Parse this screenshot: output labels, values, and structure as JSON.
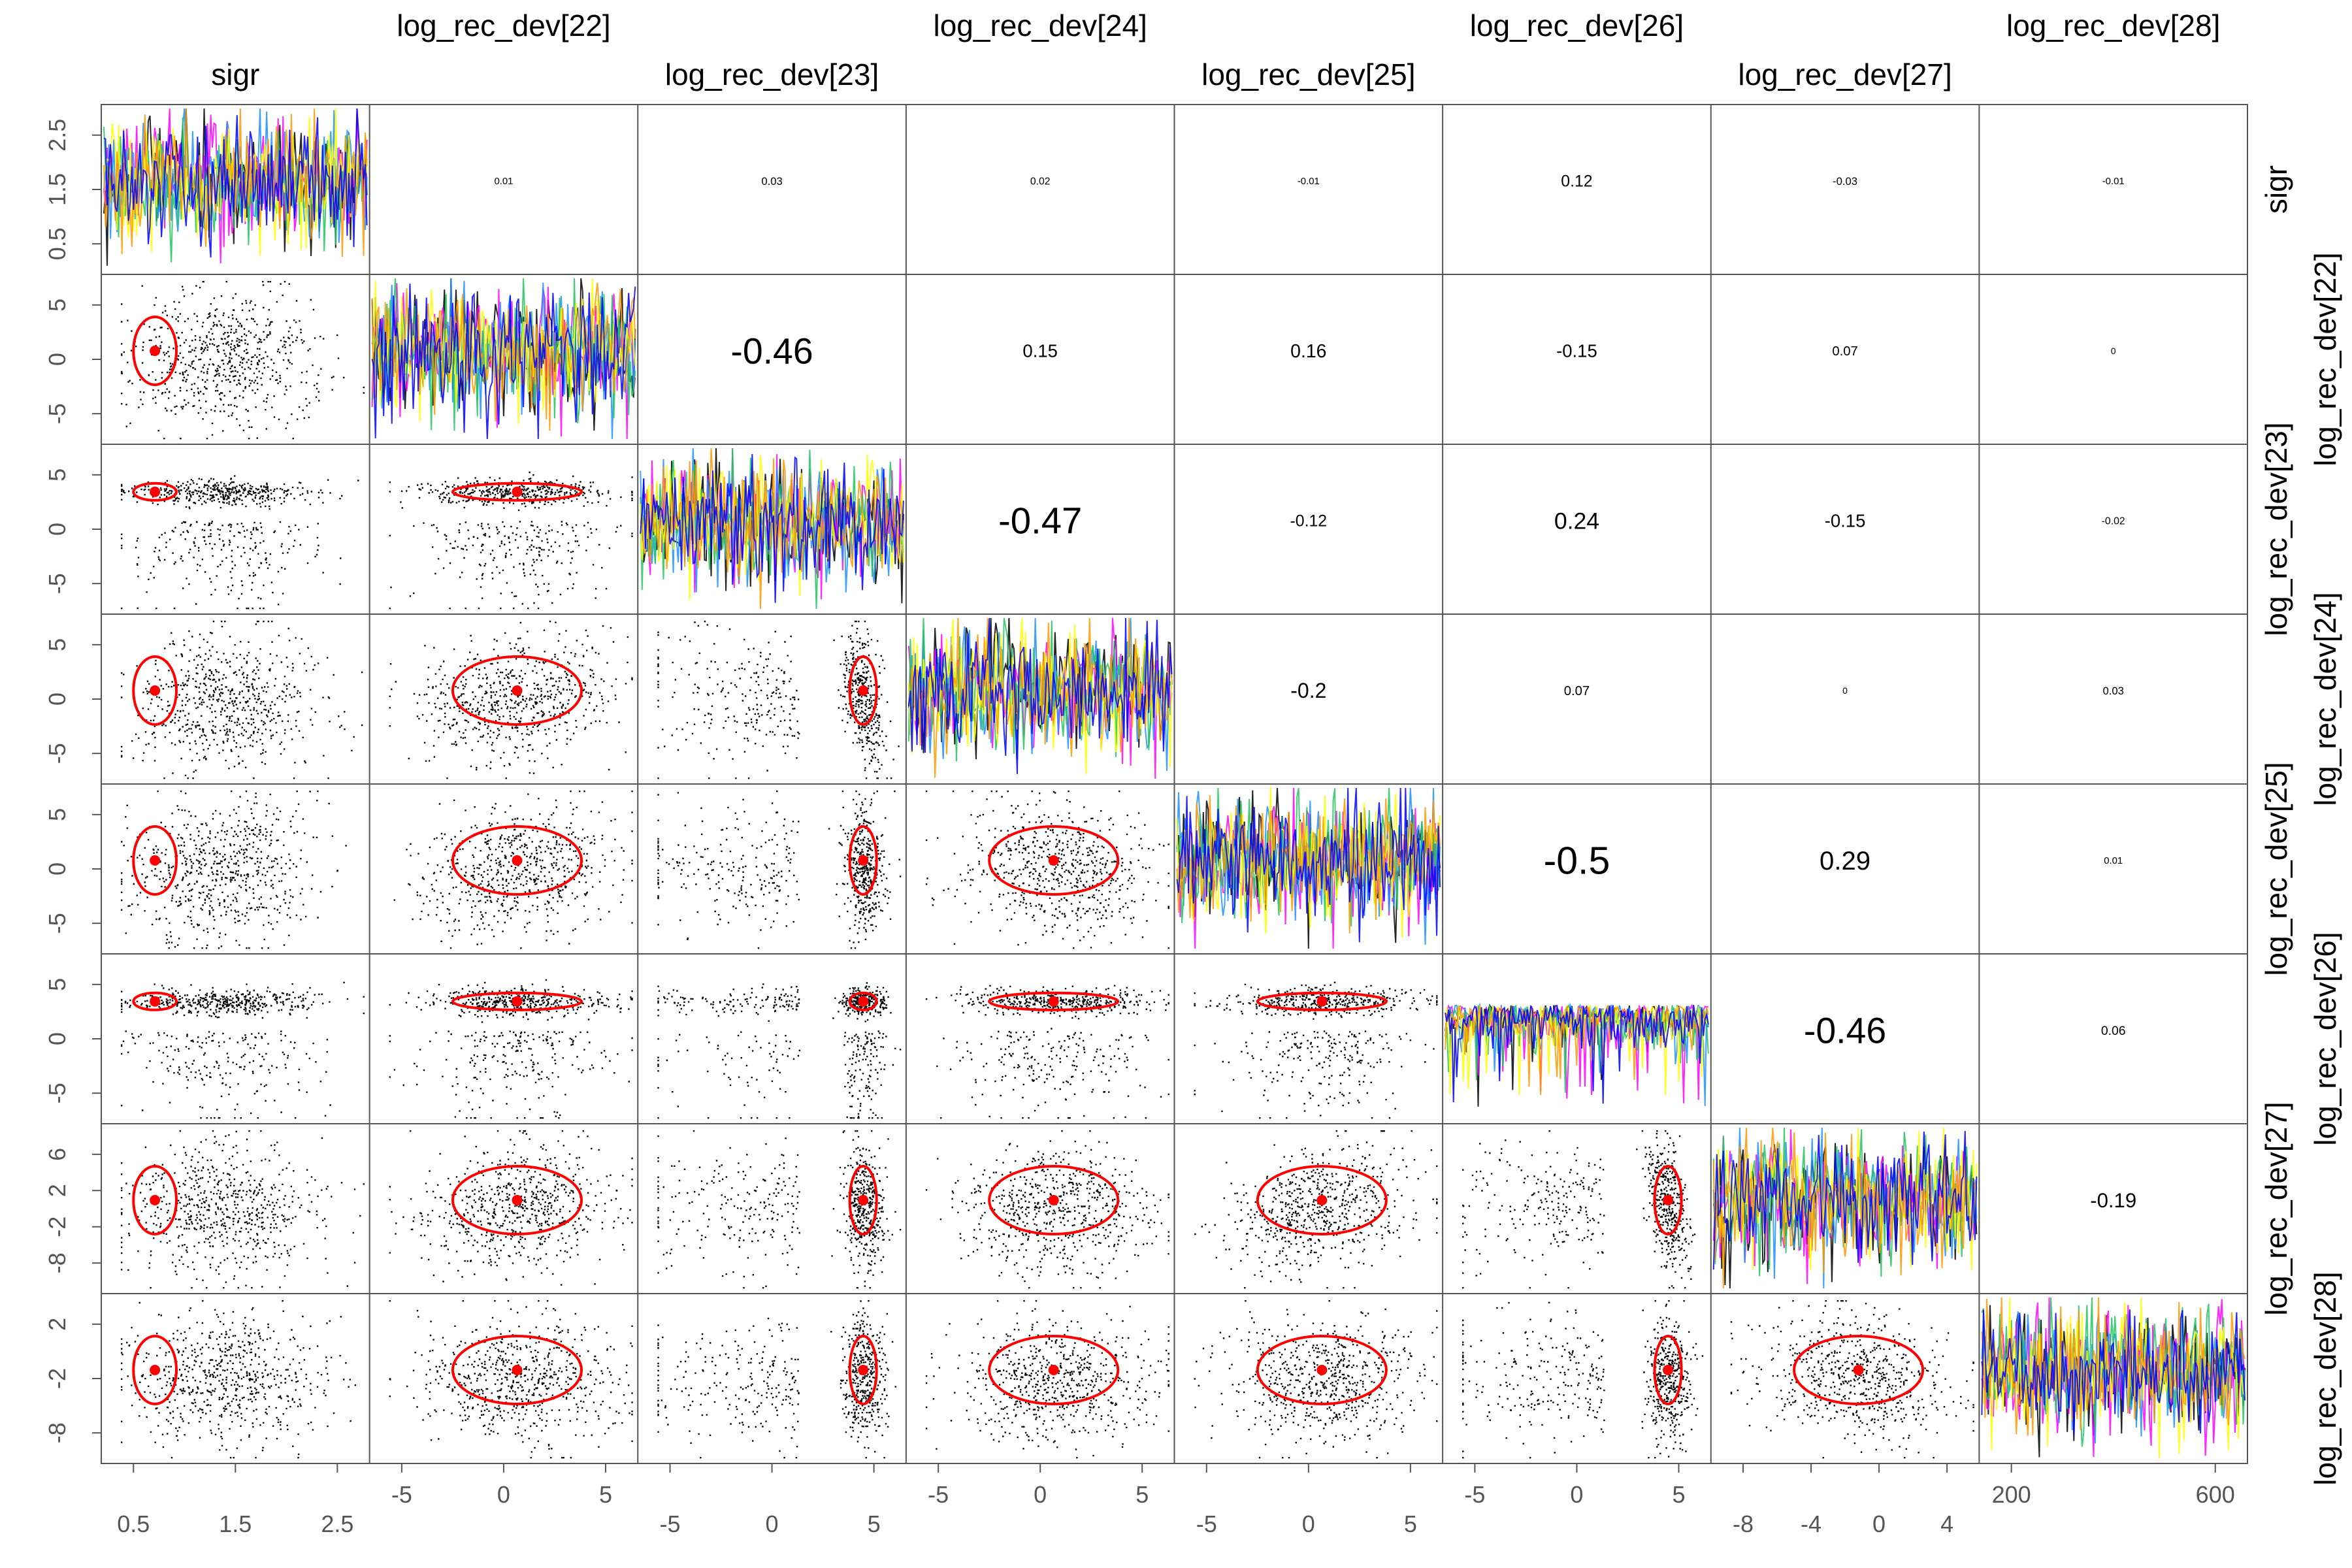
{
  "chart_data": {
    "type": "scatter",
    "variables": [
      "sigr",
      "log_rec_dev[22]",
      "log_rec_dev[23]",
      "log_rec_dev[24]",
      "log_rec_dev[25]",
      "log_rec_dev[26]",
      "log_rec_dev[27]",
      "log_rec_dev[28]"
    ],
    "correlations": [
      [
        null,
        0.01,
        0.03,
        0.02,
        -0.01,
        0.12,
        -0.03,
        -0.01
      ],
      [
        null,
        null,
        -0.46,
        0.15,
        0.16,
        -0.15,
        0.07,
        0
      ],
      [
        null,
        null,
        null,
        -0.47,
        -0.12,
        0.24,
        -0.15,
        -0.02
      ],
      [
        null,
        null,
        null,
        null,
        -0.2,
        0.07,
        0,
        0.03
      ],
      [
        null,
        null,
        null,
        null,
        null,
        -0.5,
        0.29,
        0.01
      ],
      [
        null,
        null,
        null,
        null,
        null,
        null,
        -0.46,
        0.06
      ],
      [
        null,
        null,
        null,
        null,
        null,
        null,
        null,
        -0.19
      ]
    ],
    "correlation_labels": [
      [
        "",
        "0.01",
        "0.03",
        "0.02",
        "-0.01",
        "0.12",
        "-0.03",
        "-0.01"
      ],
      [
        "",
        "",
        "-0.46",
        "0.15",
        "0.16",
        "-0.15",
        "0.07",
        "0"
      ],
      [
        "",
        "",
        "",
        "-0.47",
        "-0.12",
        "0.24",
        "-0.15",
        "-0.02"
      ],
      [
        "",
        "",
        "",
        "",
        "-0.2",
        "0.07",
        "0",
        "0.03"
      ],
      [
        "",
        "",
        "",
        "",
        "",
        "-0.5",
        "0.29",
        "0.01"
      ],
      [
        "",
        "",
        "",
        "",
        "",
        "",
        "-0.46",
        "0.06"
      ],
      [
        "",
        "",
        "",
        "",
        "",
        "",
        "",
        "-0.19"
      ]
    ],
    "means": [
      0.8,
      0.0,
      3.5,
      0.0,
      0.0,
      3.5,
      0.0,
      0.0
    ],
    "left_axis_ticks": [
      [
        "0.5",
        "1.5",
        "2.5"
      ],
      [
        "-5",
        "0",
        "5"
      ],
      [
        "-5",
        "0",
        "5"
      ],
      [
        "-5",
        "0",
        "5"
      ],
      [
        "-5",
        "0",
        "5"
      ],
      [
        "-5",
        "0",
        "5"
      ],
      [
        "-8",
        "-2",
        "2",
        "6"
      ],
      [
        "-8",
        "-2",
        "2"
      ]
    ],
    "bottom_axis_ticks": [
      [
        "0.5",
        "1.5",
        "2.5"
      ],
      [
        "-5",
        "0",
        "5"
      ],
      [
        "-5",
        "0",
        "5"
      ],
      [
        "-5",
        "0",
        "5"
      ],
      [
        "-5",
        "0",
        "5"
      ],
      [
        "-5",
        "0",
        "5"
      ],
      [
        "-8",
        "-4",
        "0",
        "4"
      ],
      [
        "200",
        "600"
      ]
    ],
    "trace_iterations": 800,
    "trace_colors": [
      "#000000",
      "#ff00ff",
      "#1e90ff",
      "#22c55e",
      "#ffff00",
      "#ff9900",
      "#0000ff"
    ],
    "grid": false,
    "point_color": "#000000",
    "ellipse_color": "#ff0000"
  }
}
